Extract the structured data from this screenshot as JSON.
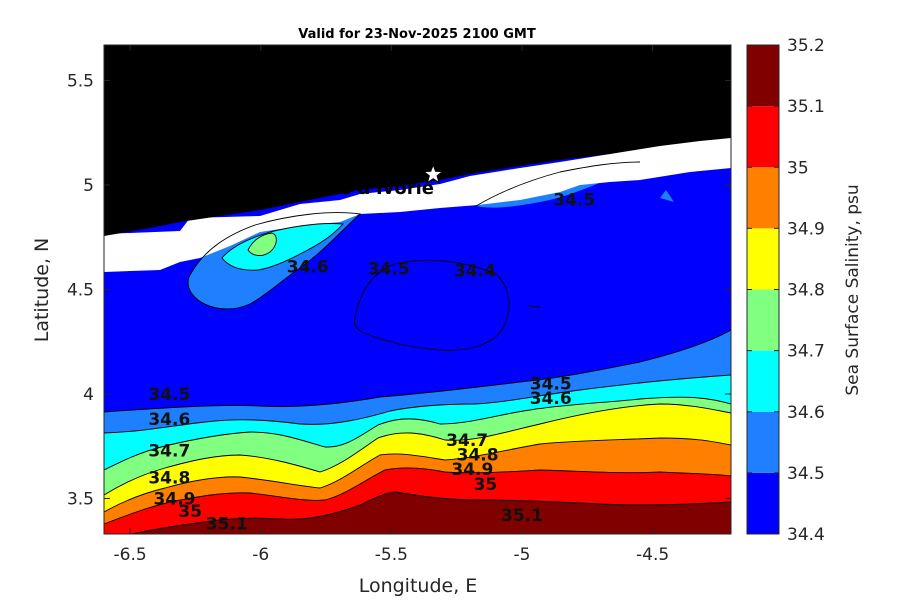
{
  "chart_data": {
    "type": "contour",
    "title": "Valid for 23-Nov-2025 2100 GMT",
    "xlabel": "Longitude, E",
    "ylabel": "Latitude, N",
    "xlim": [
      -6.6,
      -4.2
    ],
    "ylim": [
      3.33,
      5.67
    ],
    "xticks": [
      -6.5,
      -6,
      -5.5,
      -5,
      -4.5
    ],
    "xtick_labels": [
      "-6.5",
      "-6",
      "-5.5",
      "-5",
      "-4.5"
    ],
    "yticks": [
      3.5,
      4,
      4.5,
      5,
      5.5
    ],
    "ytick_labels": [
      "3.5",
      "4",
      "4.5",
      "5",
      "5.5"
    ],
    "colorbar": {
      "label": "Sea Surface Salinity, psu",
      "ticks": [
        34.4,
        34.5,
        34.6,
        34.7,
        34.8,
        34.9,
        35,
        35.1,
        35.2
      ],
      "tick_labels": [
        "34.4",
        "34.5",
        "34.6",
        "34.7",
        "34.8",
        "34.9",
        "35",
        "35.1",
        "35.2"
      ],
      "colors": [
        "#0000ff",
        "#1e80ff",
        "#00ffff",
        "#80ff80",
        "#ffff00",
        "#ff8000",
        "#ff0000",
        "#800000"
      ]
    },
    "site_label": "ONHYM) PPL EBS  – Cote d'Ivorie",
    "site_marker": {
      "lon": -5.34,
      "lat": 5.05,
      "symbol": "star"
    },
    "contour_labels": [
      {
        "text": "34.5",
        "lon": -6.35,
        "lat": 4.0
      },
      {
        "text": "34.6",
        "lon": -6.35,
        "lat": 3.88
      },
      {
        "text": "34.7",
        "lon": -6.35,
        "lat": 3.73
      },
      {
        "text": "34.8",
        "lon": -6.35,
        "lat": 3.6
      },
      {
        "text": "34.9",
        "lon": -6.33,
        "lat": 3.5
      },
      {
        "text": "35",
        "lon": -6.27,
        "lat": 3.44
      },
      {
        "text": "35.1",
        "lon": -6.13,
        "lat": 3.38
      },
      {
        "text": "34.5",
        "lon": -4.89,
        "lat": 4.05
      },
      {
        "text": "34.6",
        "lon": -4.89,
        "lat": 3.98
      },
      {
        "text": "34.7",
        "lon": -5.21,
        "lat": 3.78
      },
      {
        "text": "34.8",
        "lon": -5.17,
        "lat": 3.71
      },
      {
        "text": "34.9",
        "lon": -5.19,
        "lat": 3.64
      },
      {
        "text": "35",
        "lon": -5.14,
        "lat": 3.57
      },
      {
        "text": "35.1",
        "lon": -5.0,
        "lat": 3.42
      },
      {
        "text": "34.4",
        "lon": -5.18,
        "lat": 4.59
      },
      {
        "text": "34.5",
        "lon": -5.51,
        "lat": 4.6
      },
      {
        "text": "34.6",
        "lon": -5.82,
        "lat": 4.61
      },
      {
        "text": "34.5",
        "lon": -4.8,
        "lat": 4.93
      }
    ]
  }
}
